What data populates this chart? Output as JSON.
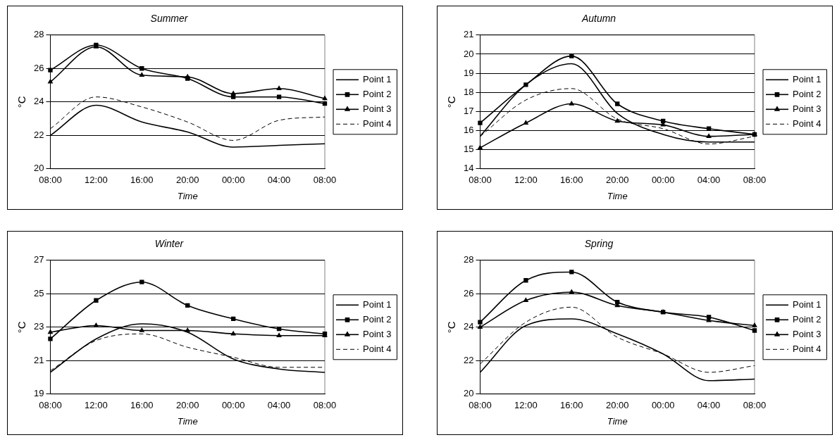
{
  "chart_data": [
    {
      "type": "line",
      "title": "Summer",
      "xlabel": "Time",
      "ylabel": "°C",
      "categories": [
        "08:00",
        "12:00",
        "16:00",
        "20:00",
        "00:00",
        "04:00",
        "08:00"
      ],
      "ylim": [
        20,
        28
      ],
      "yticks": [
        20,
        22,
        24,
        26,
        28
      ],
      "grid": "y",
      "legend": "right",
      "series": [
        {
          "name": "Point 1",
          "color": "#000000",
          "marker": "none",
          "line_style": "solid",
          "values": [
            22.0,
            23.8,
            22.8,
            22.2,
            21.3,
            21.4,
            21.5
          ]
        },
        {
          "name": "Point 2",
          "color": "#000000",
          "marker": "square",
          "line_style": "solid",
          "values": [
            25.9,
            27.4,
            26.0,
            25.4,
            24.3,
            24.3,
            23.9
          ]
        },
        {
          "name": "Point 3",
          "color": "#000000",
          "marker": "triangle",
          "line_style": "solid",
          "values": [
            25.2,
            27.3,
            25.6,
            25.5,
            24.5,
            24.8,
            24.2
          ]
        },
        {
          "name": "Point 4",
          "color": "#000000",
          "marker": "none",
          "line_style": "dashed",
          "values": [
            22.4,
            24.3,
            23.7,
            22.8,
            21.7,
            22.9,
            23.1
          ]
        }
      ]
    },
    {
      "type": "line",
      "title": "Autumn",
      "xlabel": "Time",
      "ylabel": "°C",
      "categories": [
        "08:00",
        "12:00",
        "16:00",
        "20:00",
        "00:00",
        "04:00",
        "08:00"
      ],
      "ylim": [
        14,
        21
      ],
      "yticks": [
        14,
        15,
        16,
        17,
        18,
        19,
        20,
        21
      ],
      "grid": "y",
      "legend": "right",
      "series": [
        {
          "name": "Point 1",
          "color": "#000000",
          "marker": "none",
          "line_style": "solid",
          "values": [
            15.7,
            18.4,
            19.5,
            16.9,
            15.8,
            15.4,
            15.4
          ]
        },
        {
          "name": "Point 2",
          "color": "#000000",
          "marker": "square",
          "line_style": "solid",
          "values": [
            16.4,
            18.4,
            19.9,
            17.4,
            16.5,
            16.1,
            15.8
          ]
        },
        {
          "name": "Point 3",
          "color": "#000000",
          "marker": "triangle",
          "line_style": "solid",
          "values": [
            15.1,
            16.4,
            17.4,
            16.5,
            16.3,
            15.7,
            15.8
          ]
        },
        {
          "name": "Point 4",
          "color": "#000000",
          "marker": "none",
          "line_style": "dashed",
          "values": [
            15.7,
            17.6,
            18.2,
            16.6,
            16.1,
            15.3,
            15.7
          ]
        }
      ]
    },
    {
      "type": "line",
      "title": "Winter",
      "xlabel": "Time",
      "ylabel": "°C",
      "categories": [
        "08:00",
        "12:00",
        "16:00",
        "20:00",
        "00:00",
        "04:00",
        "08:00"
      ],
      "ylim": [
        19,
        27
      ],
      "yticks": [
        19,
        21,
        23,
        25,
        27
      ],
      "grid": "y",
      "legend": "right",
      "series": [
        {
          "name": "Point 1",
          "color": "#000000",
          "marker": "none",
          "line_style": "solid",
          "values": [
            20.3,
            22.3,
            23.2,
            22.7,
            21.1,
            20.5,
            20.3
          ]
        },
        {
          "name": "Point 2",
          "color": "#000000",
          "marker": "square",
          "line_style": "solid",
          "values": [
            22.3,
            24.6,
            25.7,
            24.3,
            23.5,
            22.9,
            22.6
          ]
        },
        {
          "name": "Point 3",
          "color": "#000000",
          "marker": "triangle",
          "line_style": "solid",
          "values": [
            22.7,
            23.1,
            22.8,
            22.8,
            22.6,
            22.5,
            22.5
          ]
        },
        {
          "name": "Point 4",
          "color": "#000000",
          "marker": "none",
          "line_style": "dashed",
          "values": [
            20.4,
            22.2,
            22.6,
            21.8,
            21.2,
            20.6,
            20.6
          ]
        }
      ]
    },
    {
      "type": "line",
      "title": "Spring",
      "xlabel": "Time",
      "ylabel": "°C",
      "categories": [
        "08:00",
        "12:00",
        "16:00",
        "20:00",
        "00:00",
        "04:00",
        "08:00"
      ],
      "ylim": [
        20,
        28
      ],
      "yticks": [
        20,
        22,
        24,
        26,
        28
      ],
      "grid": "y",
      "legend": "right",
      "series": [
        {
          "name": "Point 1",
          "color": "#000000",
          "marker": "none",
          "line_style": "solid",
          "values": [
            21.3,
            24.1,
            24.5,
            23.6,
            22.4,
            20.8,
            20.9
          ]
        },
        {
          "name": "Point 2",
          "color": "#000000",
          "marker": "square",
          "line_style": "solid",
          "values": [
            24.3,
            26.8,
            27.3,
            25.5,
            24.9,
            24.6,
            23.8
          ]
        },
        {
          "name": "Point 3",
          "color": "#000000",
          "marker": "triangle",
          "line_style": "solid",
          "values": [
            24.0,
            25.6,
            26.1,
            25.3,
            24.9,
            24.4,
            24.1
          ]
        },
        {
          "name": "Point 4",
          "color": "#000000",
          "marker": "none",
          "line_style": "dashed",
          "values": [
            21.8,
            24.3,
            25.2,
            23.4,
            22.4,
            21.3,
            21.7
          ]
        }
      ]
    }
  ]
}
